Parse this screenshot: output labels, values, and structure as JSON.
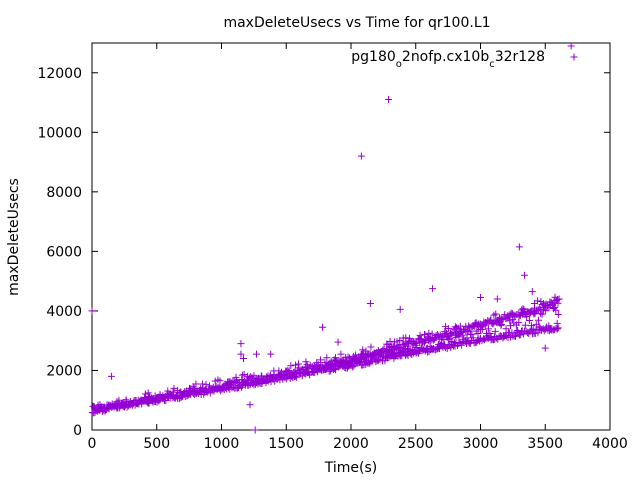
{
  "chart_data": {
    "type": "scatter",
    "title": "maxDeleteUsecs vs Time for qr100.L1",
    "xlabel": "Time(s)",
    "ylabel": "maxDeleteUsecs",
    "xlim": [
      0,
      4000
    ],
    "ylim": [
      0,
      13000
    ],
    "xticks": [
      0,
      500,
      1000,
      1500,
      2000,
      2500,
      3000,
      3500,
      4000
    ],
    "xtick_labels": [
      "0",
      "500",
      "1000",
      "1500",
      "2000",
      "2500",
      "3000",
      "3500",
      "4000"
    ],
    "yticks": [
      0,
      2000,
      4000,
      6000,
      8000,
      10000,
      12000
    ],
    "ytick_labels": [
      "0",
      "2000",
      "4000",
      "6000",
      "8000",
      "10000",
      "12000"
    ],
    "legend_position": "top-right",
    "marker": "+",
    "series": [
      {
        "name": "pg180_o2nofp.cx10b_c32r128",
        "legend_parts": [
          "pg180",
          "o",
          "2nofp.cx10b",
          "c",
          "32r128"
        ],
        "color": "#9400d3",
        "trend": {
          "description": "dense band of points, roughly linear growth with two diverging branches after ~1800s",
          "x_start": 0,
          "x_end": 3600,
          "lower_branch": [
            [
              0,
              620
            ],
            [
              500,
              1000
            ],
            [
              1000,
              1380
            ],
            [
              1500,
              1780
            ],
            [
              2000,
              2180
            ],
            [
              2500,
              2620
            ],
            [
              3000,
              3020
            ],
            [
              3600,
              3450
            ]
          ],
          "upper_branch": [
            [
              0,
              700
            ],
            [
              500,
              1080
            ],
            [
              1000,
              1480
            ],
            [
              1500,
              1900
            ],
            [
              2000,
              2400
            ],
            [
              2500,
              2950
            ],
            [
              3000,
              3550
            ],
            [
              3600,
              4300
            ]
          ]
        },
        "outliers": [
          {
            "x": 0,
            "y": 4000
          },
          {
            "x": 150,
            "y": 1800
          },
          {
            "x": 1150,
            "y": 2900
          },
          {
            "x": 1150,
            "y": 2550
          },
          {
            "x": 1170,
            "y": 2400
          },
          {
            "x": 1220,
            "y": 850
          },
          {
            "x": 1260,
            "y": 0
          },
          {
            "x": 1270,
            "y": 2550
          },
          {
            "x": 1380,
            "y": 2550
          },
          {
            "x": 1780,
            "y": 3450
          },
          {
            "x": 1900,
            "y": 2950
          },
          {
            "x": 2080,
            "y": 9200
          },
          {
            "x": 2150,
            "y": 4250
          },
          {
            "x": 2290,
            "y": 11100
          },
          {
            "x": 2380,
            "y": 4050
          },
          {
            "x": 2630,
            "y": 4750
          },
          {
            "x": 3000,
            "y": 4450
          },
          {
            "x": 3130,
            "y": 4400
          },
          {
            "x": 3300,
            "y": 6150
          },
          {
            "x": 3340,
            "y": 5200
          },
          {
            "x": 3400,
            "y": 4650
          },
          {
            "x": 3500,
            "y": 2750
          },
          {
            "x": 3700,
            "y": 12900
          }
        ]
      }
    ]
  }
}
